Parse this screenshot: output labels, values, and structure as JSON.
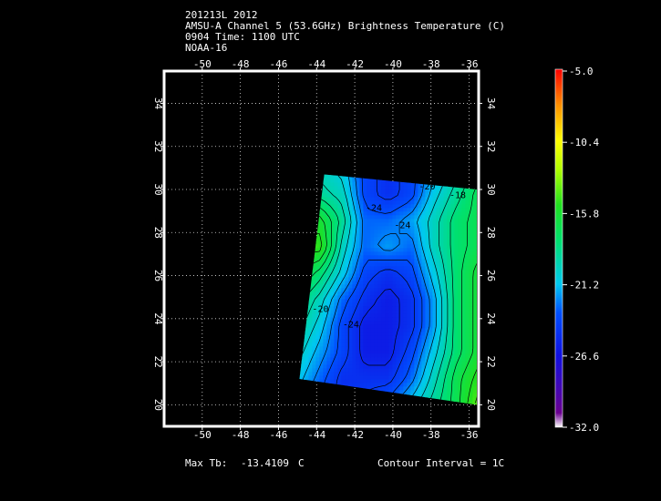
{
  "header": {
    "line1": "201213L 2012",
    "line2": "AMSU-A Channel 5 (53.6GHz) Brightness Temperature (C)",
    "line3": "0904 Time: 1100 UTC",
    "line4": "NOAA-16"
  },
  "footer": {
    "max_label": "Max Tb:",
    "max_value": "-13.4109",
    "max_unit": "C",
    "contour_label": "Contour Interval = 1C"
  },
  "chart_data": {
    "type": "heatmap",
    "xlim": [
      -52,
      -35.5
    ],
    "ylim": [
      19,
      35.5
    ],
    "grid": true,
    "x_ticks": [
      -50,
      -48,
      -46,
      -44,
      -42,
      -40,
      -38,
      -36
    ],
    "y_ticks": [
      20,
      22,
      24,
      26,
      28,
      30,
      32,
      34
    ],
    "x_tick_labels": [
      "-50",
      "-48",
      "-46",
      "-44",
      "-42",
      "-40",
      "-38",
      "-36"
    ],
    "y_tick_labels": [
      "20",
      "22",
      "24",
      "26",
      "28",
      "30",
      "32",
      "34"
    ],
    "swath_corners": [
      [
        -43.6,
        30.7
      ],
      [
        -35.6,
        30.0
      ],
      [
        -35.6,
        20.0
      ],
      [
        -44.9,
        21.2
      ]
    ],
    "contour_labels": [
      {
        "x": -41.0,
        "y": 29.0,
        "text": "-24"
      },
      {
        "x": -39.5,
        "y": 28.2,
        "text": "-24"
      },
      {
        "x": -38.2,
        "y": 30.0,
        "text": "-20"
      },
      {
        "x": -36.6,
        "y": 29.6,
        "text": "-18"
      },
      {
        "x": -43.8,
        "y": 24.3,
        "text": "-20"
      },
      {
        "x": -42.2,
        "y": 23.6,
        "text": "-24"
      }
    ],
    "temperature_field": {
      "x_range": [
        -45,
        -35.5
      ],
      "y_range": [
        20,
        31
      ],
      "rows_top_to_bottom": [
        [
          -19,
          -20,
          -21,
          -24,
          -25,
          -24,
          -22,
          -20,
          -18
        ],
        [
          -18,
          -19,
          -20,
          -24,
          -25,
          -24,
          -21,
          -19,
          -17
        ],
        [
          -16,
          -16,
          -19,
          -23,
          -23,
          -22,
          -20,
          -18,
          -17
        ],
        [
          -15,
          -15,
          -20,
          -23,
          -22,
          -23,
          -20,
          -18,
          -17
        ],
        [
          -16,
          -18,
          -21,
          -24,
          -25,
          -24,
          -21,
          -18,
          -16
        ],
        [
          -18,
          -20,
          -23,
          -25,
          -26,
          -25,
          -22,
          -18,
          -16
        ],
        [
          -19,
          -21,
          -24,
          -26,
          -26,
          -25,
          -22,
          -18,
          -16
        ],
        [
          -20,
          -22,
          -24,
          -26,
          -26,
          -24,
          -21,
          -18,
          -16
        ],
        [
          -21,
          -23,
          -25,
          -25,
          -25,
          -23,
          -20,
          -17,
          -15
        ],
        [
          -22,
          -24,
          -25,
          -24,
          -23,
          -21,
          -19,
          -17,
          -14
        ]
      ]
    },
    "colorbar": {
      "min": -32.0,
      "max": -5.0,
      "ticks": [
        -5.0,
        -10.4,
        -15.8,
        -21.2,
        -26.6,
        -32.0
      ],
      "tick_labels": [
        "-5.0",
        "-10.4",
        "-15.8",
        "-21.2",
        "-26.6",
        "-32.0"
      ]
    }
  }
}
